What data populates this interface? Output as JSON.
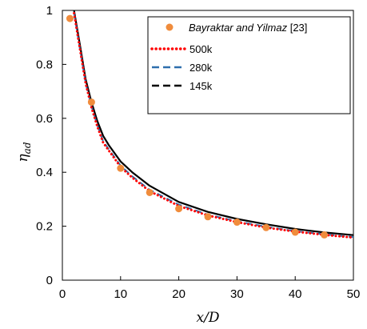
{
  "chart_data": {
    "type": "line",
    "xlabel": "x/D",
    "ylabel": "η_ad",
    "ylabel_main": "η",
    "ylabel_sub": "ad",
    "xlim": [
      0,
      50
    ],
    "ylim": [
      0,
      1
    ],
    "x_ticks": [
      0,
      10,
      20,
      30,
      40,
      50
    ],
    "y_ticks": [
      0,
      0.2,
      0.4,
      0.6,
      0.8,
      1
    ],
    "y_tick_labels": [
      "0",
      "0.2",
      "0.4",
      "0.6",
      "0.8",
      "1"
    ],
    "grid": false,
    "legend_position": "top-right",
    "legend": {
      "exp_label_italic": "Bayraktar and Yilmaz",
      "exp_label_ref": " [23]"
    },
    "series": [
      {
        "name": "500k",
        "style": "dotted",
        "color": "#ff0000",
        "x": [
          2,
          3,
          4,
          5,
          6,
          7,
          8,
          10,
          12,
          15,
          20,
          25,
          30,
          35,
          40,
          45,
          50
        ],
        "y": [
          0.99,
          0.86,
          0.73,
          0.64,
          0.57,
          0.51,
          0.48,
          0.42,
          0.38,
          0.33,
          0.275,
          0.24,
          0.215,
          0.195,
          0.18,
          0.168,
          0.158
        ]
      },
      {
        "name": "280k",
        "style": "dashed",
        "color": "#2e6fad",
        "x": [
          2,
          3,
          4,
          5,
          6,
          7,
          8,
          10,
          12,
          15,
          20,
          25,
          30,
          35,
          40,
          45,
          50
        ],
        "y": [
          0.99,
          0.86,
          0.73,
          0.645,
          0.575,
          0.515,
          0.485,
          0.425,
          0.385,
          0.335,
          0.28,
          0.243,
          0.218,
          0.198,
          0.182,
          0.17,
          0.16
        ]
      },
      {
        "name": "145k",
        "style": "solid",
        "color": "#000000",
        "x": [
          2,
          3,
          4,
          5,
          6,
          7,
          8,
          10,
          12,
          15,
          20,
          25,
          30,
          35,
          40,
          45,
          50
        ],
        "y": [
          1.0,
          0.875,
          0.745,
          0.66,
          0.59,
          0.535,
          0.5,
          0.44,
          0.4,
          0.35,
          0.29,
          0.253,
          0.227,
          0.207,
          0.19,
          0.177,
          0.167
        ]
      },
      {
        "name": "Bayraktar and Yilmaz [23]",
        "style": "markers",
        "color": "#f08c3c",
        "x": [
          1.3,
          5,
          10,
          15,
          20,
          25,
          30,
          35,
          40,
          45
        ],
        "y": [
          0.97,
          0.66,
          0.415,
          0.325,
          0.265,
          0.235,
          0.215,
          0.195,
          0.178,
          0.168
        ]
      }
    ]
  }
}
